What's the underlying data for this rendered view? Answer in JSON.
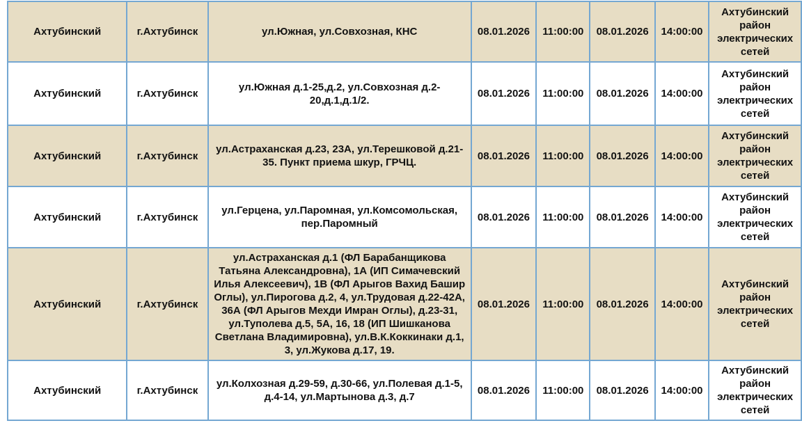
{
  "colors": {
    "row_shaded": "#e7ddc4",
    "row_plain": "#ffffff",
    "border": "#74a7d2",
    "text": "#121212"
  },
  "table": {
    "rows": [
      {
        "district": "Ахтубинский",
        "city": "г.Ахтубинск",
        "addresses": "ул.Южная, ул.Совхозная, КНС",
        "date_start": "08.01.2026",
        "time_start": "11:00:00",
        "date_end": "08.01.2026",
        "time_end": "14:00:00",
        "organization": "Ахтубинский район электрических сетей"
      },
      {
        "district": "Ахтубинский",
        "city": "г.Ахтубинск",
        "addresses": "ул.Южная д.1-25,д.2, ул.Совхозная д.2-20,д.1,д.1/2.",
        "date_start": "08.01.2026",
        "time_start": "11:00:00",
        "date_end": "08.01.2026",
        "time_end": "14:00:00",
        "organization": "Ахтубинский район электрических сетей"
      },
      {
        "district": "Ахтубинский",
        "city": "г.Ахтубинск",
        "addresses": "ул.Астраханская д.23, 23А, ул.Терешковой д.21-35. Пункт приема шкур, ГРЧЦ.",
        "date_start": "08.01.2026",
        "time_start": "11:00:00",
        "date_end": "08.01.2026",
        "time_end": "14:00:00",
        "organization": "Ахтубинский район электрических сетей"
      },
      {
        "district": "Ахтубинский",
        "city": "г.Ахтубинск",
        "addresses": "ул.Герцена, ул.Паромная, ул.Комсомольская, пер.Паромный",
        "date_start": "08.01.2026",
        "time_start": "11:00:00",
        "date_end": "08.01.2026",
        "time_end": "14:00:00",
        "organization": "Ахтубинский район электрических сетей"
      },
      {
        "district": "Ахтубинский",
        "city": "г.Ахтубинск",
        "addresses": "ул.Астраханская д.1 (ФЛ Барабанщикова Татьяна Александровна), 1А (ИП Симачевский Илья Алексеевич), 1В (ФЛ Арыгов Вахид Башир Оглы), ул.Пирогова д.2, 4, ул.Трудовая д.22-42А, 36А (ФЛ Арыгов Мехди Имран Оглы), д.23-31, ул.Туполева д.5, 5А, 16, 18 (ИП Шишканова Светлана Владимировна), ул.В.К.Коккинаки д.1, 3, ул.Жукова д.17, 19.",
        "date_start": "08.01.2026",
        "time_start": "11:00:00",
        "date_end": "08.01.2026",
        "time_end": "14:00:00",
        "organization": "Ахтубинский район электрических сетей"
      },
      {
        "district": "Ахтубинский",
        "city": "г.Ахтубинск",
        "addresses": "ул.Колхозная д.29-59, д.30-66, ул.Полевая д.1-5, д.4-14, ул.Мартынова д.3, д.7",
        "date_start": "08.01.2026",
        "time_start": "11:00:00",
        "date_end": "08.01.2026",
        "time_end": "14:00:00",
        "organization": "Ахтубинский район электрических сетей"
      }
    ]
  }
}
